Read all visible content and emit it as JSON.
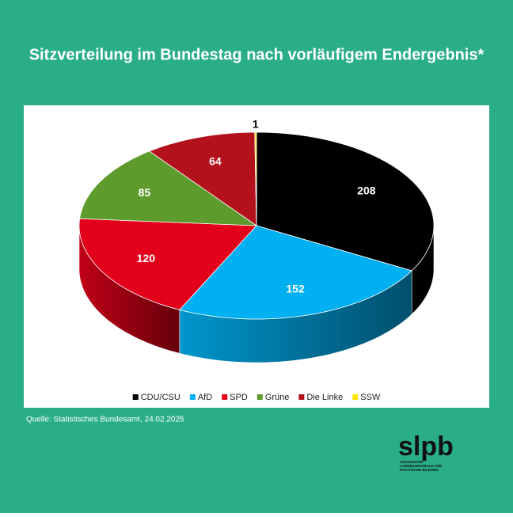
{
  "chart_data": {
    "type": "pie",
    "title": "Sitzverteilung im Bundestag nach vorläufigem Endergebnis*",
    "categories": [
      "CDU/CSU",
      "AfD",
      "SPD",
      "Grüne",
      "Die Linke",
      "SSW"
    ],
    "values": [
      208,
      152,
      120,
      85,
      64,
      1
    ],
    "colors": [
      "#000000",
      "#00b0f0",
      "#e2001a",
      "#5c9b2c",
      "#b3121c",
      "#ffe600"
    ],
    "legend": "bottom",
    "source": "Quelle:  Statistisches Bundesamt, 24.02.2025"
  },
  "logo": {
    "text": "slpb",
    "lines": [
      "SÄCHSISCHE",
      "LANDESZENTRALE FÜR",
      "POLITISCHE BILDUNG"
    ]
  }
}
